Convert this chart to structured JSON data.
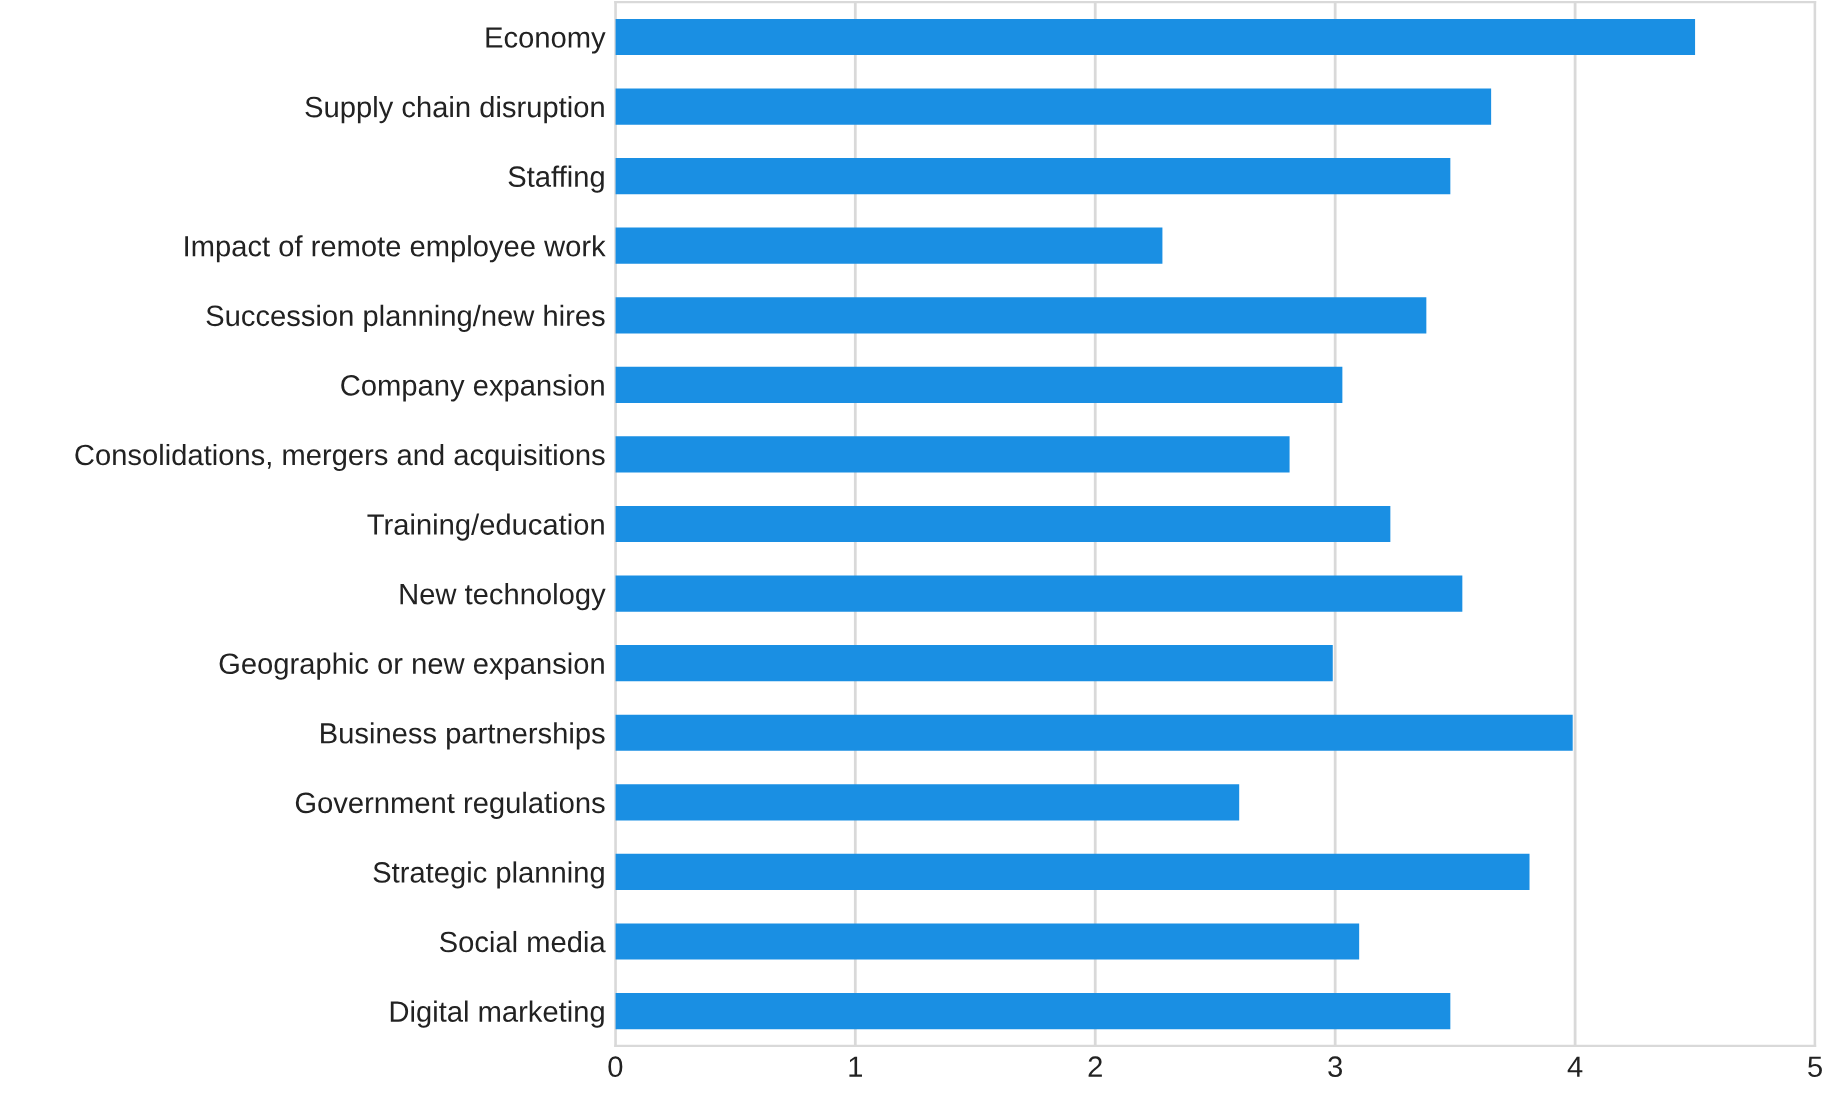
{
  "chart_data": {
    "type": "bar",
    "orientation": "horizontal",
    "categories": [
      "Economy",
      "Supply chain disruption",
      "Staffing",
      "Impact of remote employee work",
      "Succession planning/new hires",
      "Company expansion",
      "Consolidations, mergers and acquisitions",
      "Training/education",
      "New technology",
      "Geographic or new expansion",
      "Business partnerships",
      "Government regulations",
      "Strategic planning",
      "Social media",
      "Digital marketing"
    ],
    "values": [
      4.5,
      3.65,
      3.48,
      2.28,
      3.38,
      3.03,
      2.81,
      3.23,
      3.53,
      2.99,
      3.99,
      2.6,
      3.81,
      3.1,
      3.48
    ],
    "color": "#1a8fe3",
    "xlim": [
      0,
      5
    ],
    "xticks": [
      0,
      1,
      2,
      3,
      4,
      5
    ],
    "grid": "x",
    "legend": false
  }
}
